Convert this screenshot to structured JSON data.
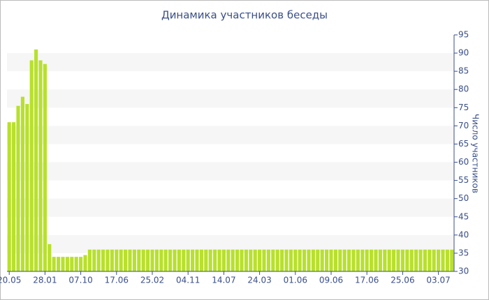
{
  "chart_data": {
    "type": "bar",
    "title": "Динамика участников беседы",
    "y_label": "Число участников",
    "categories": [
      "20.05",
      null,
      null,
      null,
      null,
      null,
      null,
      null,
      "28.01",
      null,
      null,
      null,
      null,
      null,
      null,
      null,
      "07.10",
      null,
      null,
      null,
      null,
      null,
      null,
      null,
      "17.06",
      null,
      null,
      null,
      null,
      null,
      null,
      null,
      "25.02",
      null,
      null,
      null,
      null,
      null,
      null,
      null,
      "04.11",
      null,
      null,
      null,
      null,
      null,
      null,
      null,
      "14.07",
      null,
      null,
      null,
      null,
      null,
      null,
      null,
      "24.03",
      null,
      null,
      null,
      null,
      null,
      null,
      null,
      "01.06",
      null,
      null,
      null,
      null,
      null,
      null,
      null,
      "09.06",
      null,
      null,
      null,
      null,
      null,
      null,
      null,
      "17.06",
      null,
      null,
      null,
      null,
      null,
      null,
      null,
      "25.06",
      null,
      null,
      null,
      null,
      null,
      null,
      null,
      "03.07",
      null,
      null,
      null
    ],
    "values": [
      71,
      71,
      75.5,
      78,
      76,
      88,
      91,
      88,
      87,
      37.5,
      34,
      34,
      34,
      34,
      34,
      34,
      34,
      34.5,
      36,
      36,
      36,
      36,
      36,
      36,
      36,
      36,
      36,
      36,
      36,
      36,
      36,
      36,
      36,
      36,
      36,
      36,
      36,
      36,
      36,
      36,
      36,
      36,
      36,
      36,
      36,
      36,
      36,
      36,
      36,
      36,
      36,
      36,
      36,
      36,
      36,
      36,
      36,
      36,
      36,
      36,
      36,
      36,
      36,
      36,
      36,
      36,
      36,
      36,
      36,
      36,
      36,
      36,
      36,
      36,
      36,
      36,
      36,
      36,
      36,
      36,
      36,
      36,
      36,
      36,
      36,
      36,
      36,
      36,
      36,
      36,
      36,
      36,
      36,
      36,
      36,
      36,
      36,
      36,
      36,
      36
    ],
    "color": "#b8e02c",
    "ylim": [
      30,
      95
    ],
    "yticks": [
      30,
      35,
      40,
      45,
      50,
      55,
      60,
      65,
      70,
      75,
      80,
      85,
      90,
      95
    ],
    "y_axis_side": "right",
    "grid_bands": true
  }
}
